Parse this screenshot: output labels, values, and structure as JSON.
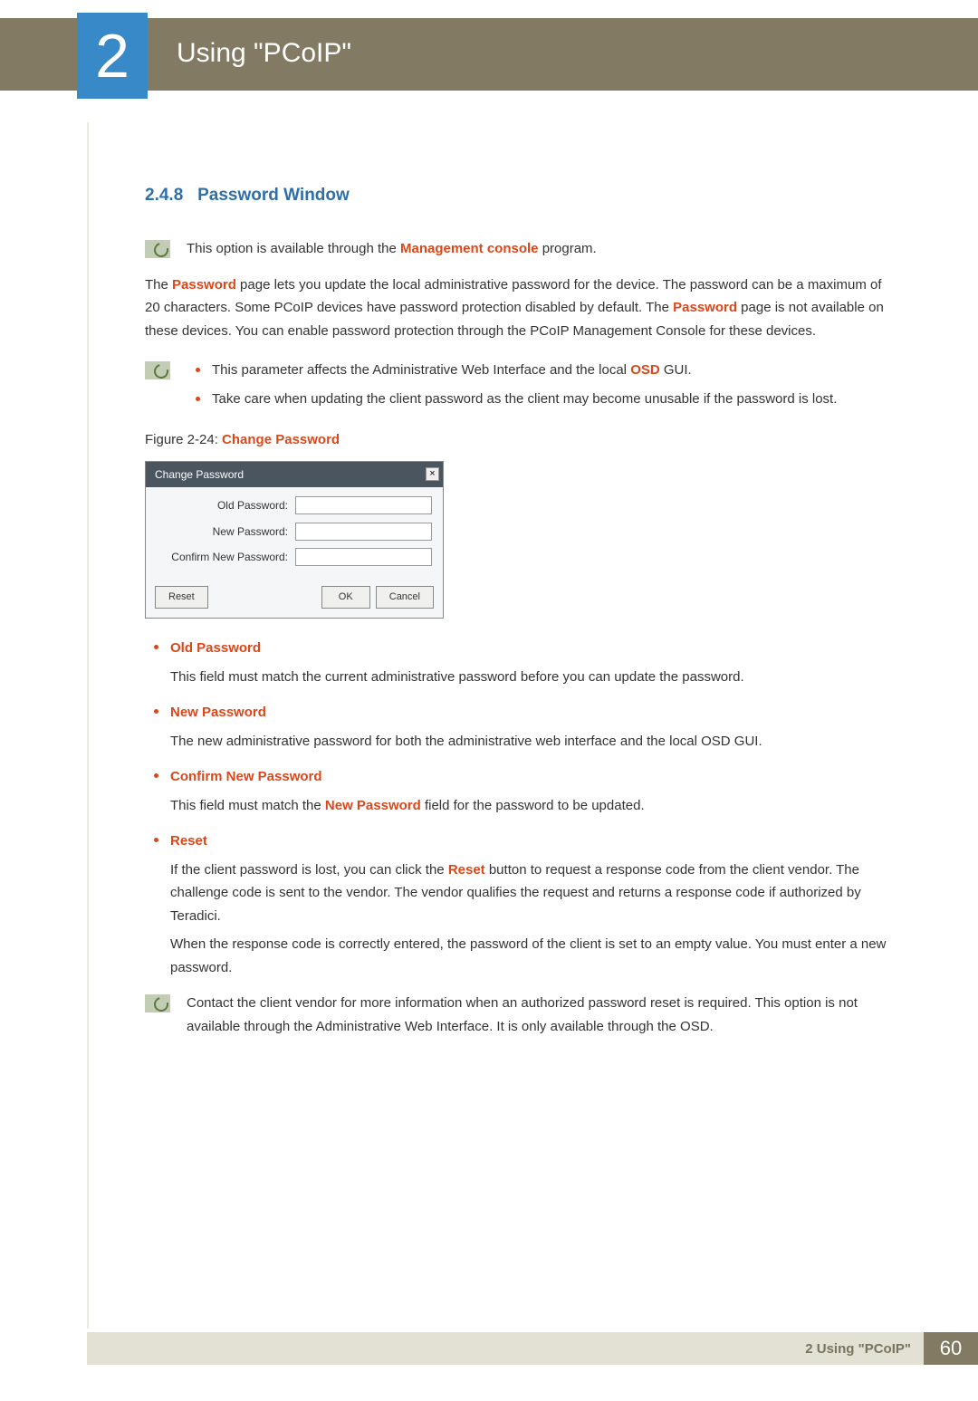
{
  "chapter": {
    "number": "2",
    "title": "Using \"PCoIP\""
  },
  "section": {
    "number": "2.4.8",
    "title": "Password Window"
  },
  "note1": {
    "pre": "This option is available through the ",
    "em": "Management console",
    "post": " program."
  },
  "intro": {
    "p1_pre": "The ",
    "p1_em": "Password",
    "p1_post": " page lets you update the local administrative password for the device. The password can be a maximum of 20 characters. Some PCoIP devices have password protection disabled by default. The ",
    "p1_em2": "Password",
    "p1_post2": " page is not available on these devices. You can enable password protection through the PCoIP Management Console for these devices."
  },
  "note2": {
    "b1_pre": "This parameter affects the Administrative Web Interface and the local ",
    "b1_em": "OSD",
    "b1_post": " GUI.",
    "b2": "Take care when updating the client password as the client may become unusable if the password is lost."
  },
  "figure": {
    "label": "Figure 2-24: ",
    "title": "Change Password"
  },
  "dialog": {
    "title": "Change Password",
    "fields": {
      "old": "Old Password:",
      "new": "New Password:",
      "confirm": "Confirm New Password:"
    },
    "buttons": {
      "reset": "Reset",
      "ok": "OK",
      "cancel": "Cancel"
    }
  },
  "fields": {
    "old": {
      "name": "Old Password",
      "desc": "This field must match the current administrative password before you can update the password."
    },
    "new": {
      "name": "New Password",
      "desc": "The new administrative password for both the administrative web interface and the local OSD GUI."
    },
    "confirm": {
      "name": "Confirm New Password",
      "desc_pre": "This field must match the ",
      "desc_em": "New Password",
      "desc_post": " field for the password to be updated."
    },
    "reset": {
      "name": "Reset",
      "p1_pre": "If the client password is lost, you can click the ",
      "p1_em": "Reset",
      "p1_post": " button to request a response code from the client vendor. The challenge code is sent to the vendor. The vendor qualifies the request and returns a response code if authorized by Teradici.",
      "p2": "When the response code is correctly entered, the password of the client is set to an empty value. You must enter a new password."
    }
  },
  "note3": "Contact the client vendor for more information when an authorized password reset is required. This option is not available through the Administrative Web Interface. It is only available through the OSD.",
  "footer": {
    "label": "2 Using \"PCoIP\"",
    "page": "60"
  }
}
